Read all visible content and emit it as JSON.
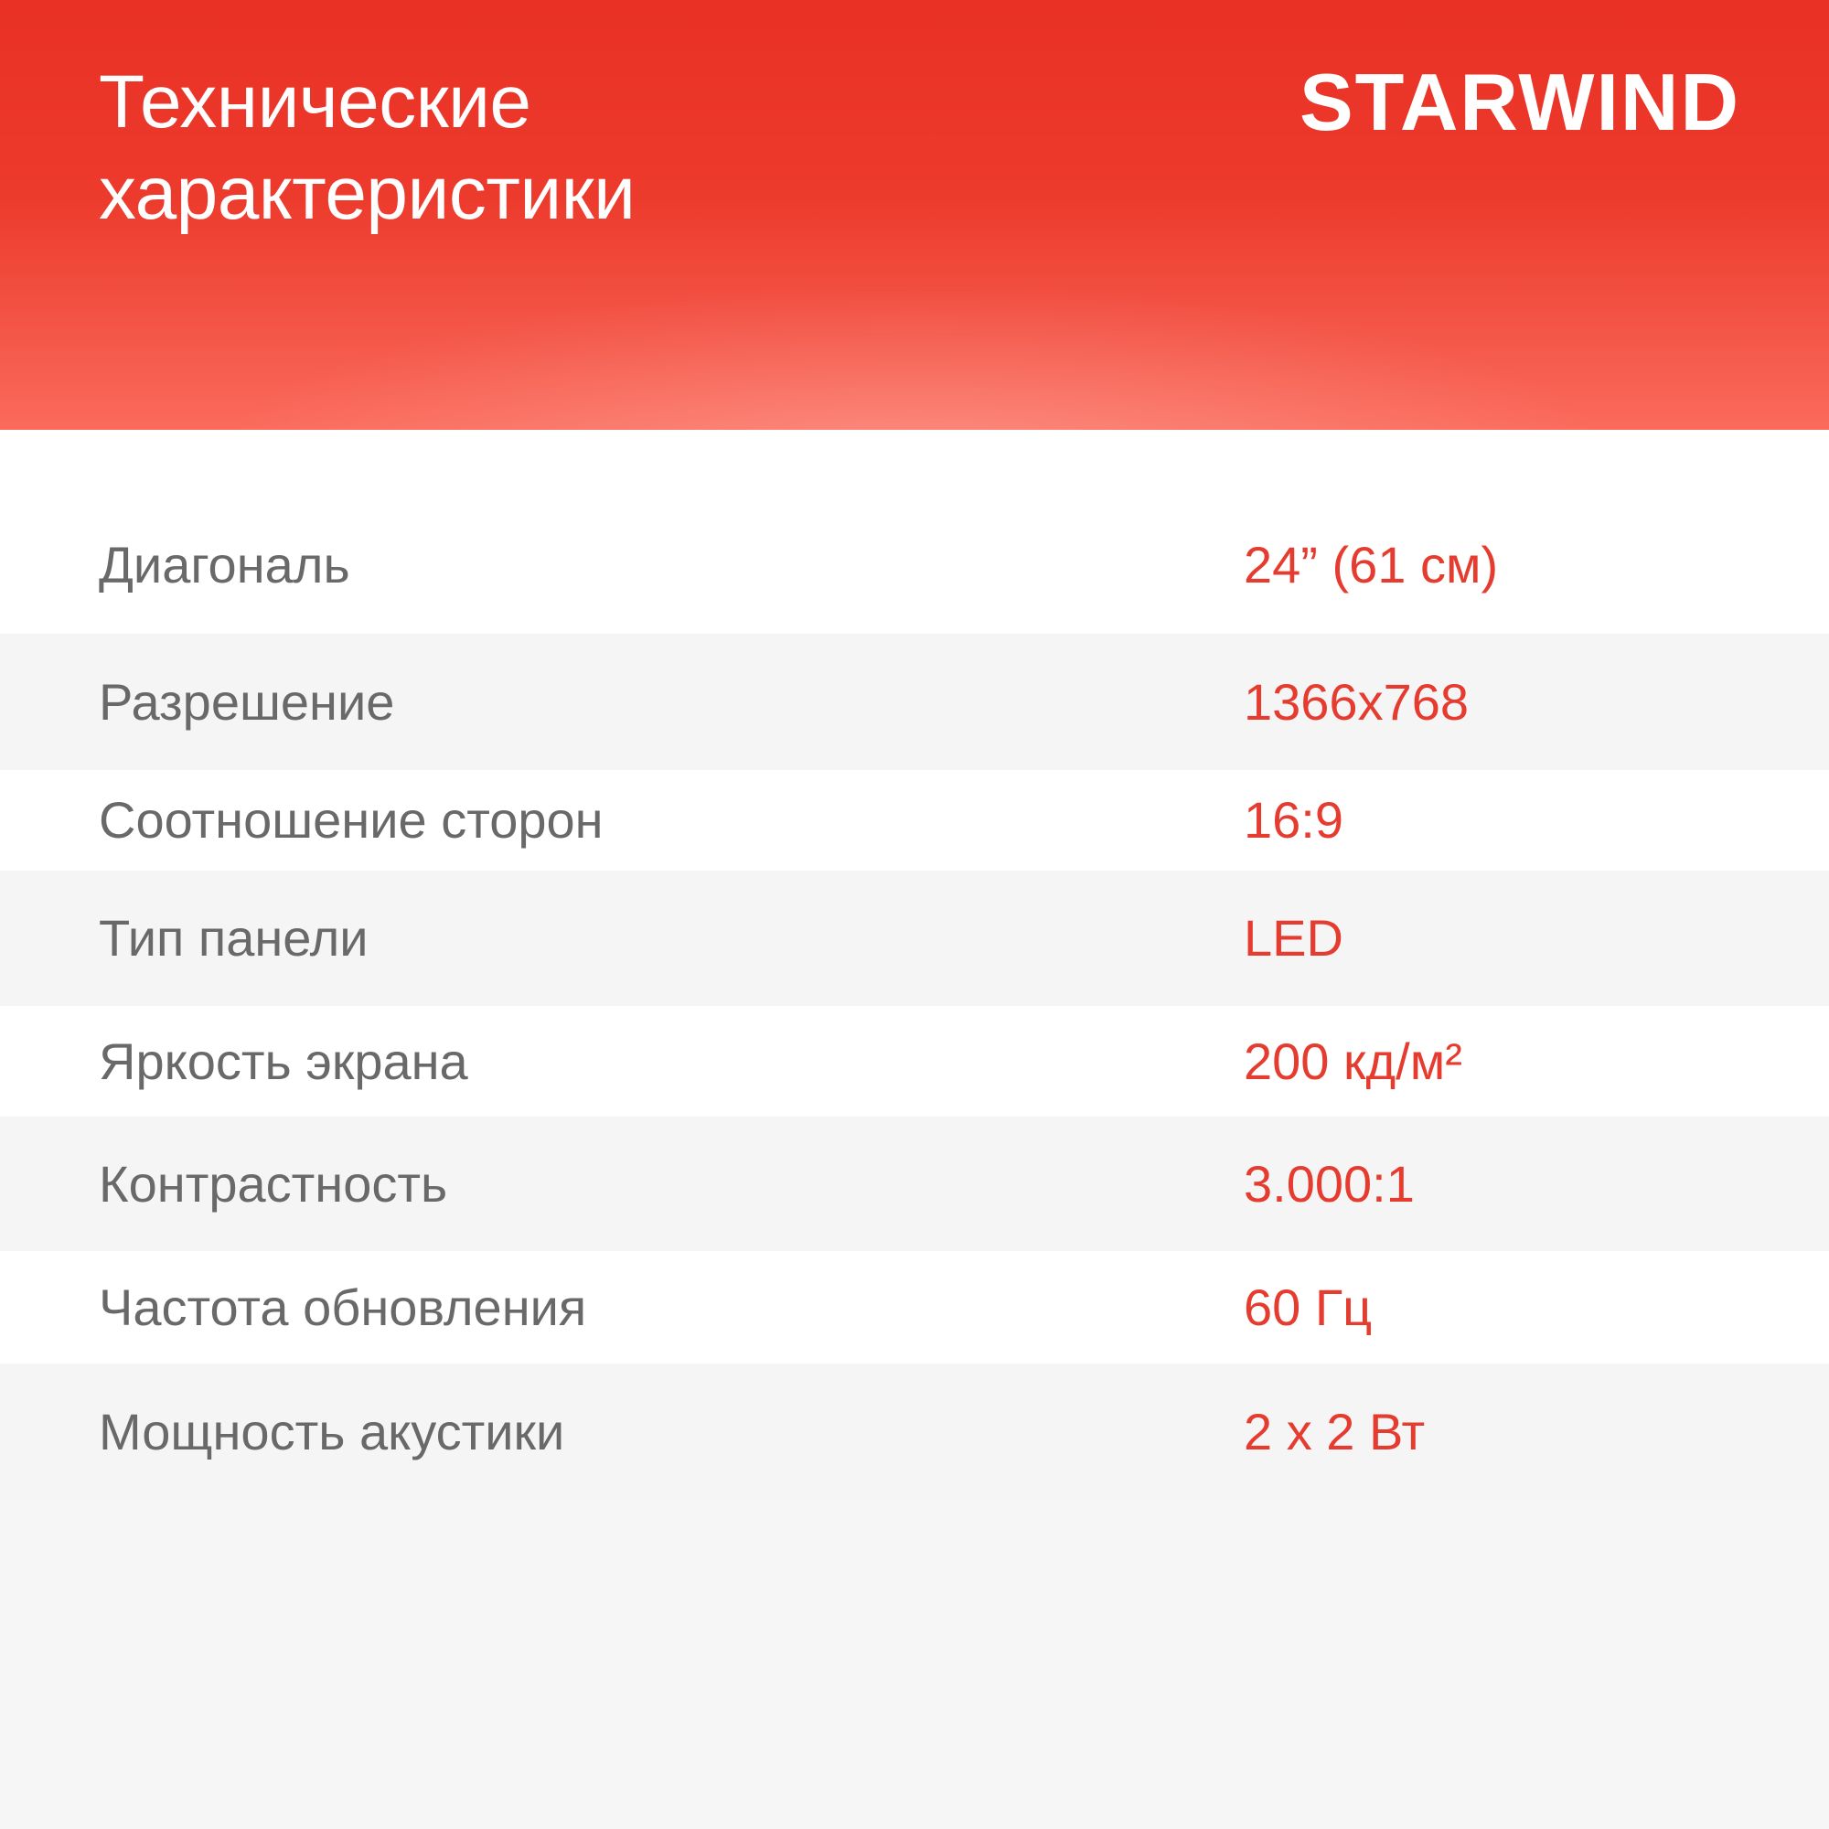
{
  "header": {
    "title_line1": "Технические",
    "title_line2": "характеристики",
    "brand": "STARWIND"
  },
  "colors": {
    "header_red_top": "#e93125",
    "header_red_bottom": "#fb6b5c",
    "value_red": "#e63b2f",
    "label_gray": "#696969",
    "row_alt_gray": "#f5f5f6",
    "footer_gray": "#f6f6f7"
  },
  "specs": {
    "rows": [
      {
        "label": "Диагональ",
        "value": "24” (61 см)"
      },
      {
        "label": "Разрешение",
        "value": "1366x768"
      },
      {
        "label": "Соотношение сторон",
        "value": "16:9"
      },
      {
        "label": "Тип панели",
        "value": "LED"
      },
      {
        "label": "Яркость экрана",
        "value": "200 кд/м²"
      },
      {
        "label": "Контрастность",
        "value": "3.000:1"
      },
      {
        "label": "Частота обновления",
        "value": "60 Гц"
      },
      {
        "label": "Мощность акустики",
        "value": "2 x 2 Вт"
      }
    ]
  }
}
